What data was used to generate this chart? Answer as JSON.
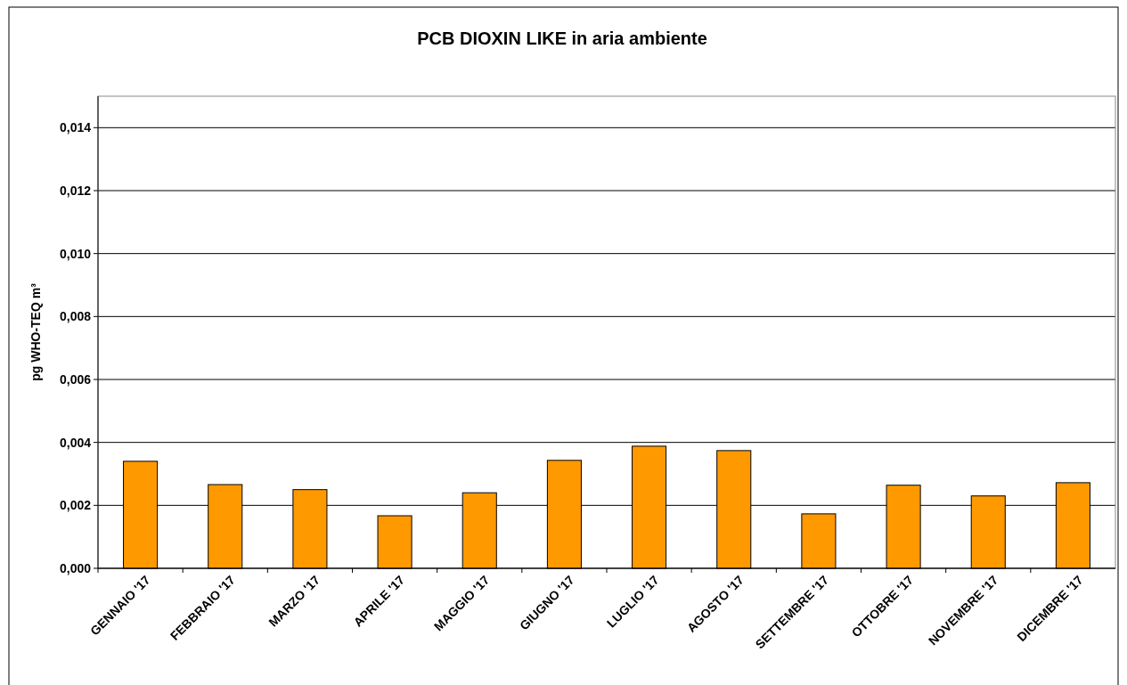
{
  "chart_data": {
    "type": "bar",
    "title": "PCB DIOXIN LIKE in aria ambiente",
    "ylabel": "pg WHO-TEQ m³",
    "categories": [
      "GENNAIO '17",
      "FEBBRAIO '17",
      "MARZO '17",
      "APRILE '17",
      "MAGGIO '17",
      "GIUGNO '17",
      "LUGLIO '17",
      "AGOSTO '17",
      "SETTEMBRE '17",
      "OTTOBRE '17",
      "NOVEMBRE '17",
      "DICEMBRE '17"
    ],
    "values": [
      0.0034,
      0.00266,
      0.0025,
      0.00167,
      0.0024,
      0.00343,
      0.00388,
      0.00374,
      0.00173,
      0.00264,
      0.0023,
      0.00272
    ],
    "color": "#ff9900",
    "ylim": [
      0,
      0.015
    ],
    "yticks": [
      {
        "value": 0,
        "label": "0,000"
      },
      {
        "value": 0.002,
        "label": "0,002"
      },
      {
        "value": 0.004,
        "label": "0,004"
      },
      {
        "value": 0.006,
        "label": "0,006"
      },
      {
        "value": 0.008,
        "label": "0,008"
      },
      {
        "value": 0.01,
        "label": "0,010"
      },
      {
        "value": 0.012,
        "label": "0,012"
      },
      {
        "value": 0.014,
        "label": "0,014"
      }
    ],
    "grid": "y"
  }
}
